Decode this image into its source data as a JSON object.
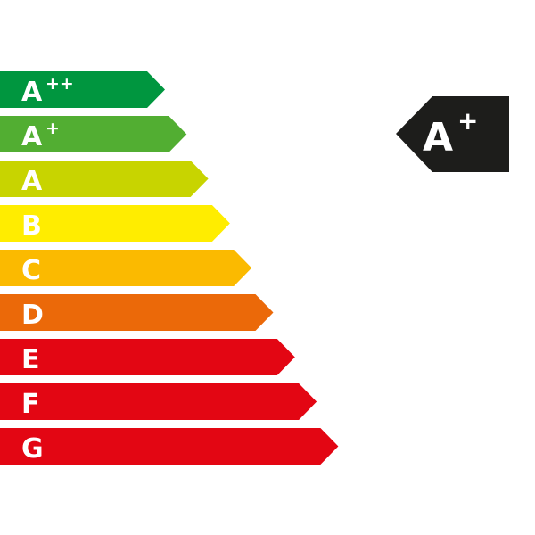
{
  "classes": [
    {
      "letter": "A",
      "sup": "++",
      "color": "#00963f"
    },
    {
      "letter": "A",
      "sup": "+",
      "color": "#52ae32"
    },
    {
      "letter": "A",
      "sup": "",
      "color": "#c8d400"
    },
    {
      "letter": "B",
      "sup": "",
      "color": "#ffed00"
    },
    {
      "letter": "C",
      "sup": "",
      "color": "#fbba00"
    },
    {
      "letter": "D",
      "sup": "",
      "color": "#eb6909"
    },
    {
      "letter": "E",
      "sup": "",
      "color": "#e30613"
    },
    {
      "letter": "F",
      "sup": "",
      "color": "#e30613"
    },
    {
      "letter": "G",
      "sup": "",
      "color": "#e30613"
    }
  ],
  "rating": {
    "letter": "A",
    "sup": "+",
    "color": "#1d1d1b"
  }
}
